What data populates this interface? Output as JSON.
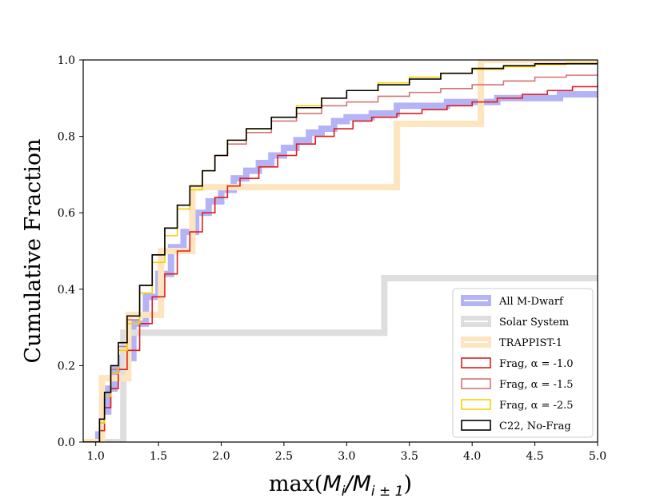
{
  "chart_data": {
    "type": "line",
    "title": "",
    "xlabel": "max(M_i/M_i±1)",
    "xlabel_parts": {
      "prefix": "max(",
      "m1": "M",
      "sub1": "i",
      "slash": "/",
      "m2": "M",
      "sub2": "i ± 1",
      "suffix": ")"
    },
    "ylabel": "Cumulative Fraction",
    "xlim": [
      0.9,
      5.0
    ],
    "ylim": [
      0.0,
      1.0
    ],
    "xticks": [
      1.0,
      1.5,
      2.0,
      2.5,
      3.0,
      3.5,
      4.0,
      4.5,
      5.0
    ],
    "xtick_labels": [
      "1.0",
      "1.5",
      "2.0",
      "2.5",
      "3.0",
      "3.5",
      "4.0",
      "4.5",
      "5.0"
    ],
    "yticks": [
      0.0,
      0.2,
      0.4,
      0.6,
      0.8,
      1.0
    ],
    "ytick_labels": [
      "0.0",
      "0.2",
      "0.4",
      "0.6",
      "0.8",
      "1.0"
    ],
    "legend_position": "lower-right",
    "series": [
      {
        "name": "All M-Dwarf",
        "color": "#b3b3f5",
        "style": "thick-step",
        "x": [
          0.9,
          1.02,
          1.05,
          1.1,
          1.15,
          1.2,
          1.3,
          1.4,
          1.5,
          1.6,
          1.7,
          1.8,
          1.9,
          2.0,
          2.1,
          2.2,
          2.3,
          2.4,
          2.5,
          2.6,
          2.7,
          2.8,
          2.9,
          3.0,
          3.2,
          3.4,
          3.6,
          3.8,
          4.0,
          4.2,
          4.5,
          4.7,
          5.0
        ],
        "y": [
          0.0,
          0.02,
          0.08,
          0.14,
          0.19,
          0.22,
          0.31,
          0.38,
          0.44,
          0.51,
          0.55,
          0.6,
          0.63,
          0.66,
          0.69,
          0.71,
          0.73,
          0.75,
          0.77,
          0.79,
          0.81,
          0.82,
          0.84,
          0.85,
          0.86,
          0.88,
          0.88,
          0.89,
          0.89,
          0.9,
          0.9,
          0.91,
          0.91
        ]
      },
      {
        "name": "Solar System",
        "color": "#dedede",
        "style": "thick-step",
        "x": [
          0.9,
          1.15,
          1.22,
          3.3,
          3.3,
          5.0
        ],
        "y": [
          0.0,
          0.0,
          0.286,
          0.286,
          0.429,
          0.429
        ]
      },
      {
        "name": "TRAPPIST-1",
        "color": "#fde5bf",
        "style": "thick-step",
        "x": [
          0.9,
          1.05,
          1.05,
          1.26,
          1.26,
          1.52,
          1.52,
          1.77,
          1.77,
          3.4,
          3.4,
          4.07,
          4.07,
          5.0
        ],
        "y": [
          0.0,
          0.0,
          0.167,
          0.167,
          0.333,
          0.333,
          0.5,
          0.5,
          0.667,
          0.667,
          0.833,
          0.833,
          1.0,
          1.0
        ]
      },
      {
        "name": "Frag, α =  -1.0",
        "color": "#e41a1c",
        "style": "step",
        "x": [
          0.9,
          1.0,
          1.03,
          1.07,
          1.12,
          1.18,
          1.25,
          1.35,
          1.45,
          1.55,
          1.65,
          1.75,
          1.85,
          1.95,
          2.05,
          2.15,
          2.3,
          2.45,
          2.6,
          2.75,
          2.9,
          3.05,
          3.2,
          3.4,
          3.6,
          3.8,
          4.0,
          4.2,
          4.4,
          4.6,
          4.8,
          5.0
        ],
        "y": [
          0.0,
          0.0,
          0.03,
          0.09,
          0.14,
          0.19,
          0.24,
          0.31,
          0.38,
          0.44,
          0.5,
          0.55,
          0.6,
          0.64,
          0.67,
          0.69,
          0.72,
          0.75,
          0.78,
          0.8,
          0.82,
          0.84,
          0.85,
          0.86,
          0.87,
          0.88,
          0.89,
          0.9,
          0.91,
          0.92,
          0.93,
          0.935
        ]
      },
      {
        "name": "Frag, α =  -1.5",
        "color": "#d47575",
        "style": "step",
        "x": [
          0.9,
          1.0,
          1.03,
          1.07,
          1.12,
          1.18,
          1.25,
          1.35,
          1.45,
          1.55,
          1.65,
          1.75,
          1.85,
          1.95,
          2.05,
          2.2,
          2.4,
          2.6,
          2.8,
          3.0,
          3.25,
          3.5,
          3.75,
          4.0,
          4.25,
          4.5,
          4.75,
          5.0
        ],
        "y": [
          0.0,
          0.0,
          0.05,
          0.12,
          0.19,
          0.25,
          0.32,
          0.41,
          0.49,
          0.56,
          0.62,
          0.67,
          0.71,
          0.75,
          0.78,
          0.81,
          0.84,
          0.86,
          0.88,
          0.89,
          0.905,
          0.915,
          0.925,
          0.935,
          0.945,
          0.955,
          0.96,
          0.965
        ]
      },
      {
        "name": "Frag, α =  -2.5",
        "color": "#f5d000",
        "style": "step",
        "x": [
          0.9,
          1.0,
          1.03,
          1.07,
          1.12,
          1.18,
          1.25,
          1.35,
          1.45,
          1.55,
          1.65,
          1.75,
          1.85,
          1.95,
          2.05,
          2.2,
          2.4,
          2.6,
          2.8,
          3.0,
          3.25,
          3.5,
          3.75,
          4.0,
          4.25,
          4.5,
          4.75,
          5.0
        ],
        "y": [
          0.0,
          0.0,
          0.05,
          0.12,
          0.18,
          0.24,
          0.31,
          0.39,
          0.47,
          0.54,
          0.61,
          0.66,
          0.71,
          0.75,
          0.79,
          0.82,
          0.85,
          0.88,
          0.9,
          0.92,
          0.94,
          0.955,
          0.965,
          0.975,
          0.982,
          0.988,
          0.992,
          0.995
        ]
      },
      {
        "name": "C22, No-Frag",
        "color": "#000000",
        "style": "step",
        "x": [
          0.9,
          1.0,
          1.03,
          1.07,
          1.12,
          1.18,
          1.25,
          1.35,
          1.45,
          1.55,
          1.65,
          1.75,
          1.85,
          1.95,
          2.05,
          2.2,
          2.4,
          2.6,
          2.8,
          3.0,
          3.25,
          3.5,
          3.75,
          4.0,
          4.25,
          4.5,
          4.75,
          5.0
        ],
        "y": [
          0.0,
          0.0,
          0.06,
          0.13,
          0.2,
          0.26,
          0.33,
          0.41,
          0.49,
          0.56,
          0.62,
          0.67,
          0.71,
          0.75,
          0.79,
          0.82,
          0.85,
          0.875,
          0.9,
          0.92,
          0.935,
          0.95,
          0.965,
          0.978,
          0.985,
          0.99,
          0.99,
          0.99
        ]
      }
    ]
  }
}
